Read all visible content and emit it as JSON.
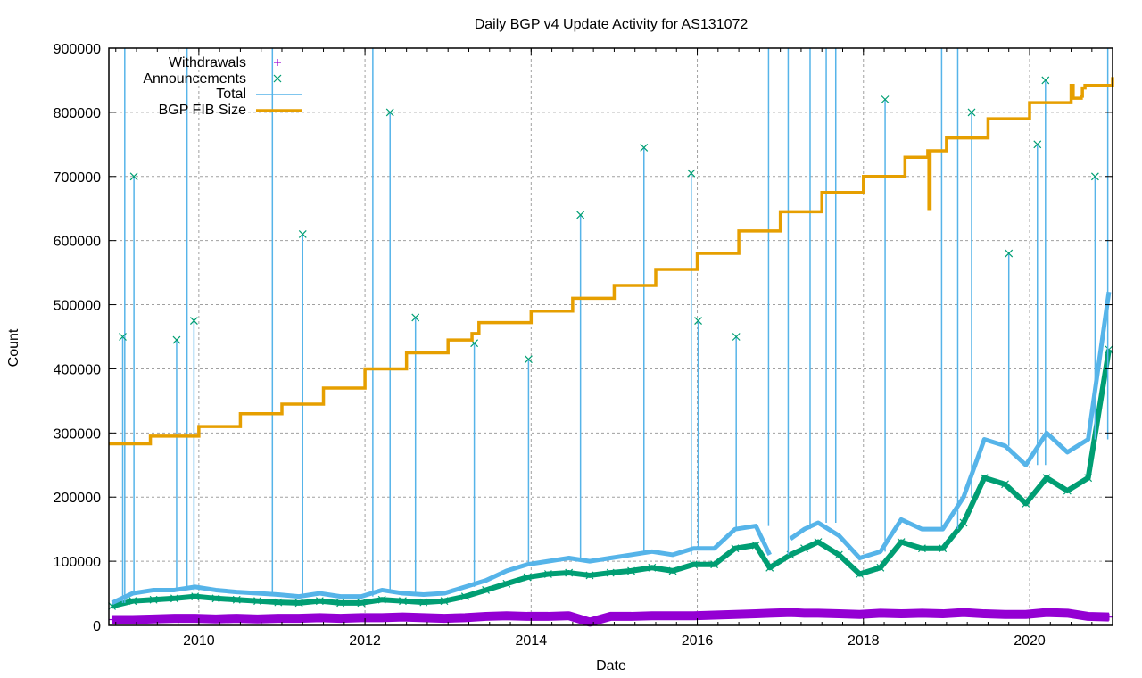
{
  "chart_data": {
    "type": "line",
    "title": "Daily BGP v4 Update Activity for AS131072",
    "xlabel": "Date",
    "ylabel": "Count",
    "xlim": [
      "2008-12-01",
      "2020-12-31"
    ],
    "ylim": [
      0,
      900000
    ],
    "x_ticks": [
      "2010",
      "2012",
      "2014",
      "2016",
      "2018",
      "2020"
    ],
    "y_ticks": [
      0,
      100000,
      200000,
      300000,
      400000,
      500000,
      600000,
      700000,
      800000,
      900000
    ],
    "grid": true,
    "legend_position": "top-left",
    "colors": {
      "withdrawals": "#9400d3",
      "announcements": "#009e73",
      "total": "#56b4e9",
      "fib": "#e69f00"
    },
    "series": [
      {
        "name": "Withdrawals",
        "style": "plus",
        "x": [
          "2008-12",
          "2009-03",
          "2009-06",
          "2009-09",
          "2009-12",
          "2010-03",
          "2010-06",
          "2010-09",
          "2010-12",
          "2011-03",
          "2011-06",
          "2011-09",
          "2011-12",
          "2012-03",
          "2012-06",
          "2012-09",
          "2012-12",
          "2013-03",
          "2013-06",
          "2013-09",
          "2013-12",
          "2014-03",
          "2014-06",
          "2014-09",
          "2014-12",
          "2015-03",
          "2015-06",
          "2015-09",
          "2015-12",
          "2016-03",
          "2016-06",
          "2016-09",
          "2016-11",
          "2017-02",
          "2017-04",
          "2017-06",
          "2017-09",
          "2017-12",
          "2018-03",
          "2018-06",
          "2018-09",
          "2018-12",
          "2019-03",
          "2019-06",
          "2019-09",
          "2019-12",
          "2020-03",
          "2020-06",
          "2020-09",
          "2020-12"
        ],
        "values": [
          9000,
          9000,
          10000,
          11000,
          11000,
          10000,
          11000,
          10000,
          11000,
          11000,
          12000,
          11000,
          12000,
          12000,
          13000,
          12000,
          11000,
          12000,
          14000,
          15000,
          14000,
          14000,
          15000,
          5000,
          14000,
          14000,
          15000,
          15000,
          15000,
          16000,
          17000,
          18000,
          19000,
          20000,
          19000,
          19000,
          18000,
          17000,
          19000,
          18000,
          19000,
          18000,
          20000,
          18000,
          17000,
          17000,
          20000,
          19000,
          14000,
          13000
        ]
      },
      {
        "name": "Announcements",
        "style": "cross",
        "x": [
          "2008-12",
          "2009-03",
          "2009-06",
          "2009-09",
          "2009-12",
          "2010-03",
          "2010-06",
          "2010-09",
          "2010-12",
          "2011-03",
          "2011-06",
          "2011-09",
          "2011-12",
          "2012-03",
          "2012-06",
          "2012-09",
          "2012-12",
          "2013-03",
          "2013-06",
          "2013-09",
          "2013-12",
          "2014-03",
          "2014-06",
          "2014-09",
          "2014-12",
          "2015-03",
          "2015-06",
          "2015-09",
          "2015-12",
          "2016-03",
          "2016-06",
          "2016-09",
          "2016-11",
          "2017-02",
          "2017-04",
          "2017-06",
          "2017-09",
          "2017-12",
          "2018-03",
          "2018-06",
          "2018-09",
          "2018-12",
          "2019-03",
          "2019-06",
          "2019-09",
          "2019-12",
          "2020-03",
          "2020-06",
          "2020-09",
          "2020-12"
        ],
        "values": [
          30000,
          38000,
          40000,
          42000,
          45000,
          42000,
          40000,
          38000,
          36000,
          35000,
          38000,
          35000,
          35000,
          40000,
          38000,
          36000,
          38000,
          45000,
          55000,
          65000,
          75000,
          80000,
          82000,
          78000,
          82000,
          85000,
          90000,
          85000,
          95000,
          95000,
          120000,
          125000,
          90000,
          110000,
          120000,
          130000,
          110000,
          80000,
          90000,
          130000,
          120000,
          120000,
          160000,
          230000,
          220000,
          190000,
          230000,
          210000,
          230000,
          430000
        ]
      },
      {
        "name": "Total",
        "style": "line",
        "x": [
          "2008-12",
          "2009-03",
          "2009-06",
          "2009-09",
          "2009-12",
          "2010-03",
          "2010-06",
          "2010-09",
          "2010-12",
          "2011-03",
          "2011-06",
          "2011-09",
          "2011-12",
          "2012-03",
          "2012-06",
          "2012-09",
          "2012-12",
          "2013-03",
          "2013-06",
          "2013-09",
          "2013-12",
          "2014-03",
          "2014-06",
          "2014-09",
          "2014-12",
          "2015-03",
          "2015-06",
          "2015-09",
          "2015-12",
          "2016-03",
          "2016-06",
          "2016-09",
          "2016-11",
          "2017-02",
          "2017-04",
          "2017-06",
          "2017-09",
          "2017-12",
          "2018-03",
          "2018-06",
          "2018-09",
          "2018-12",
          "2019-03",
          "2019-06",
          "2019-09",
          "2019-12",
          "2020-03",
          "2020-06",
          "2020-09",
          "2020-12"
        ],
        "values": [
          35000,
          50000,
          55000,
          55000,
          60000,
          55000,
          52000,
          50000,
          48000,
          45000,
          50000,
          45000,
          45000,
          55000,
          50000,
          48000,
          50000,
          60000,
          70000,
          85000,
          95000,
          100000,
          105000,
          100000,
          105000,
          110000,
          115000,
          110000,
          120000,
          120000,
          150000,
          155000,
          110000,
          135000,
          150000,
          160000,
          140000,
          105000,
          115000,
          165000,
          150000,
          150000,
          200000,
          290000,
          280000,
          250000,
          300000,
          270000,
          290000,
          520000
        ]
      },
      {
        "name": "BGP FIB Size",
        "style": "thick-line",
        "x": [
          "2008-12-01",
          "2009-06-01",
          "2010-01-01",
          "2010-07-01",
          "2011-01-01",
          "2011-07-01",
          "2012-01-01",
          "2012-07-01",
          "2013-01-01",
          "2013-04-15",
          "2013-05-15",
          "2014-01-01",
          "2014-07-01",
          "2015-01-01",
          "2015-07-01",
          "2016-01-01",
          "2016-07-01",
          "2017-01-01",
          "2017-07-01",
          "2018-01-01",
          "2018-07-01",
          "2018-10-10",
          "2018-10-15",
          "2018-10-20",
          "2019-01-01",
          "2019-07-01",
          "2020-01-01",
          "2020-07-01",
          "2020-07-10",
          "2020-08-15",
          "2020-08-20",
          "2020-09-01",
          "2020-12-31"
        ],
        "values": [
          283000,
          295000,
          310000,
          330000,
          345000,
          370000,
          400000,
          425000,
          445000,
          455000,
          472000,
          490000,
          510000,
          530000,
          555000,
          580000,
          615000,
          645000,
          675000,
          700000,
          730000,
          740000,
          650000,
          740000,
          760000,
          790000,
          815000,
          842000,
          822000,
          825000,
          838000,
          842000,
          855000
        ]
      }
    ],
    "total_spikes": [
      {
        "date": "2009-02-10",
        "value": 900000
      },
      {
        "date": "2009-03-20",
        "value": 700000
      },
      {
        "date": "2009-02-01",
        "value": 450000
      },
      {
        "date": "2009-09-25",
        "value": 445000
      },
      {
        "date": "2009-11-10",
        "value": 900000
      },
      {
        "date": "2009-12-10",
        "value": 475000
      },
      {
        "date": "2010-11-20",
        "value": 900000
      },
      {
        "date": "2011-04-01",
        "value": 610000
      },
      {
        "date": "2012-02-05",
        "value": 900000
      },
      {
        "date": "2012-04-20",
        "value": 800000
      },
      {
        "date": "2012-08-10",
        "value": 480000
      },
      {
        "date": "2013-04-25",
        "value": 440000
      },
      {
        "date": "2013-12-20",
        "value": 415000
      },
      {
        "date": "2014-08-05",
        "value": 640000
      },
      {
        "date": "2015-05-10",
        "value": 745000
      },
      {
        "date": "2015-12-05",
        "value": 705000
      },
      {
        "date": "2016-01-05",
        "value": 475000
      },
      {
        "date": "2016-06-20",
        "value": 450000
      },
      {
        "date": "2016-11-10",
        "value": 900000
      },
      {
        "date": "2017-02-05",
        "value": 900000
      },
      {
        "date": "2017-05-10",
        "value": 900000
      },
      {
        "date": "2017-07-20",
        "value": 900000
      },
      {
        "date": "2017-09-01",
        "value": 900000
      },
      {
        "date": "2018-04-05",
        "value": 820000
      },
      {
        "date": "2018-12-10",
        "value": 900000
      },
      {
        "date": "2019-02-20",
        "value": 900000
      },
      {
        "date": "2019-04-20",
        "value": 800000
      },
      {
        "date": "2019-10-01",
        "value": 580000
      },
      {
        "date": "2020-02-05",
        "value": 750000
      },
      {
        "date": "2020-03-10",
        "value": 850000
      },
      {
        "date": "2020-10-15",
        "value": 700000
      },
      {
        "date": "2020-12-10",
        "value": 900000
      }
    ]
  }
}
